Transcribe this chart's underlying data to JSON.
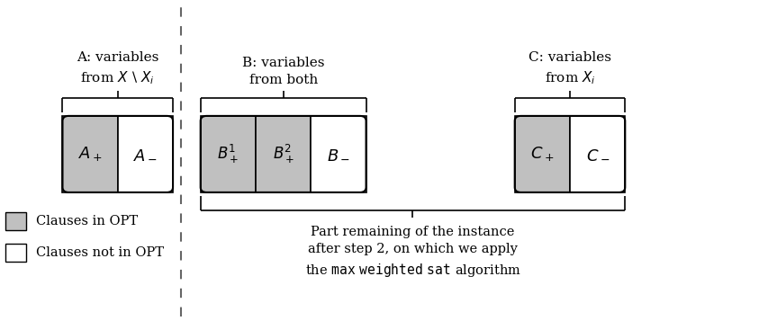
{
  "bg_color": "#ffffff",
  "gray_color": "#c0c0c0",
  "white_color": "#ffffff",
  "border_color": "#000000",
  "dashed_line_color": "#555555",
  "label_A": "A: variables\nfrom $X\\setminus X_i$",
  "label_B": "B: variables\nfrom both",
  "label_C": "C: variables\nfrom $X_i$",
  "cell_A_plus_label": "$A_+$",
  "cell_A_minus_label": "$A_-$",
  "cell_B1_plus_label": "$B^1_+$",
  "cell_B2_plus_label": "$B^2_+$",
  "cell_B_minus_label": "$B_-$",
  "cell_C_plus_label": "$C_+$",
  "cell_C_minus_label": "$C_-$",
  "legend_gray_label": "Clauses in OPT",
  "legend_white_label": "Clauses not in OPT",
  "bottom_text": "Part remaining of the instance\nafter step 2, on which we apply\nthe $\\mathsc{max weighted sat}$ algorithm",
  "fig_width": 8.54,
  "fig_height": 3.57,
  "dpi": 100
}
